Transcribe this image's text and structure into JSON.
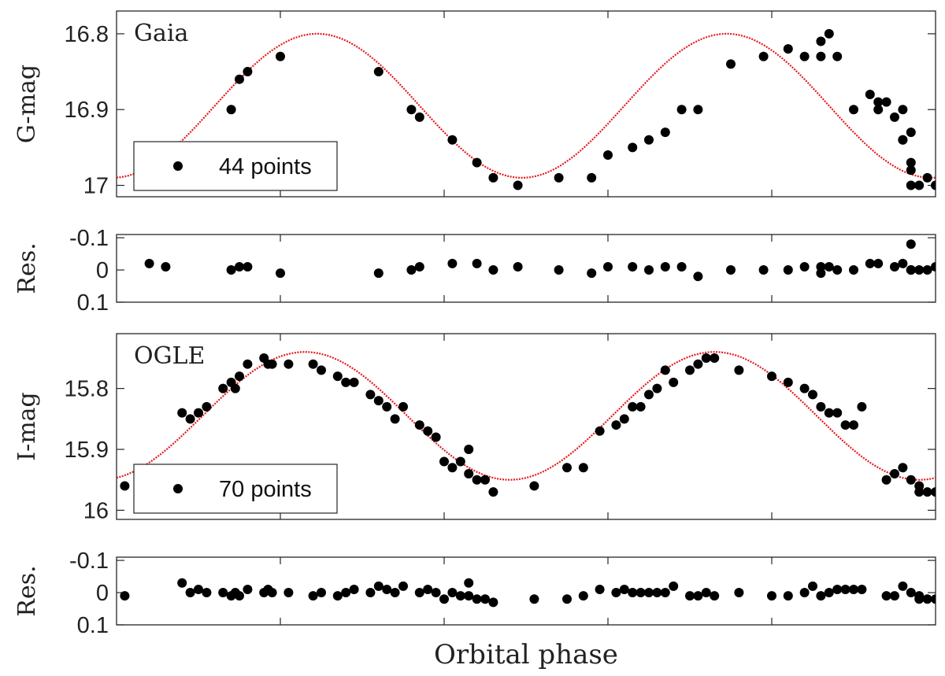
{
  "figure": {
    "xlabel": "Orbital phase",
    "point_color": "#000000",
    "model_color": "#e41a1c",
    "axes_color": "#262626"
  },
  "chart_data": [
    {
      "id": "gaia",
      "type": "scatter",
      "title": "Gaia",
      "ylabel": "G-mag",
      "xlim": [
        0,
        1
      ],
      "ylim": [
        16.77,
        17.015
      ],
      "y_inverted": true,
      "yticks": [
        16.8,
        16.9,
        17
      ],
      "ytick_labels": [
        "16.8",
        "16.9",
        "17"
      ],
      "xticks": [
        0.2,
        0.4,
        0.6,
        0.8
      ],
      "legend": {
        "label": "44 points",
        "location": "lower-left"
      },
      "model": {
        "type": "sinusoid",
        "mean": 16.895,
        "amplitude": 0.095,
        "minima_phase": [
          0.245,
          0.75
        ]
      },
      "series": [
        {
          "x": [
            0.06,
            0.14,
            0.15,
            0.16,
            0.2,
            0.32,
            0.36,
            0.37,
            0.41,
            0.44,
            0.46,
            0.49,
            0.54,
            0.58,
            0.6,
            0.63,
            0.65,
            0.67,
            0.69,
            0.71,
            0.75,
            0.79,
            0.82,
            0.84,
            0.86,
            0.86,
            0.87,
            0.88,
            0.9,
            0.92,
            0.93,
            0.95,
            0.97,
            0.96,
            0.96,
            0.97,
            0.97,
            0.97,
            0.93,
            0.94,
            0.96,
            0.98,
            0.99,
            1.0
          ],
          "y": [
            17.0,
            16.9,
            16.86,
            16.85,
            16.83,
            16.85,
            16.9,
            16.91,
            16.94,
            16.97,
            16.99,
            17.0,
            16.99,
            16.99,
            16.96,
            16.95,
            16.94,
            16.93,
            16.9,
            16.9,
            16.84,
            16.83,
            16.82,
            16.83,
            16.81,
            16.83,
            16.8,
            16.83,
            16.9,
            16.88,
            16.89,
            16.91,
            16.93,
            16.94,
            16.94,
            16.97,
            16.98,
            17.0,
            16.9,
            16.89,
            16.9,
            17.0,
            16.99,
            17.0
          ]
        }
      ]
    },
    {
      "id": "gaia-res",
      "type": "scatter",
      "ylabel": "Res.",
      "xlim": [
        0,
        1
      ],
      "ylim": [
        -0.11,
        0.1
      ],
      "y_inverted": true,
      "yticks": [
        -0.1,
        0,
        0.1
      ],
      "ytick_labels": [
        "-0.1",
        "0",
        "0.1"
      ],
      "xticks": [
        0.2,
        0.4,
        0.6,
        0.8
      ],
      "series": [
        {
          "x": [
            0.04,
            0.06,
            0.14,
            0.15,
            0.16,
            0.2,
            0.32,
            0.36,
            0.37,
            0.41,
            0.44,
            0.46,
            0.49,
            0.54,
            0.58,
            0.6,
            0.63,
            0.65,
            0.67,
            0.69,
            0.71,
            0.75,
            0.79,
            0.82,
            0.84,
            0.86,
            0.86,
            0.87,
            0.88,
            0.9,
            0.92,
            0.93,
            0.95,
            0.97,
            0.96,
            0.97,
            0.97,
            0.97,
            0.98,
            0.99,
            1.0
          ],
          "y": [
            -0.02,
            -0.01,
            0.0,
            -0.01,
            -0.01,
            0.01,
            0.01,
            0.0,
            -0.01,
            -0.02,
            -0.02,
            0.0,
            -0.01,
            0.0,
            0.01,
            -0.01,
            -0.01,
            0.0,
            -0.01,
            -0.01,
            0.02,
            0.0,
            0.0,
            0.0,
            -0.01,
            0.01,
            -0.01,
            -0.01,
            0.0,
            0.0,
            -0.02,
            -0.02,
            -0.01,
            -0.08,
            -0.02,
            0.0,
            0.0,
            0.0,
            0.0,
            0.0,
            -0.01
          ]
        }
      ]
    },
    {
      "id": "ogle",
      "type": "scatter",
      "title": "OGLE",
      "ylabel": "I-mag",
      "xlim": [
        0,
        1
      ],
      "ylim": [
        15.71,
        16.015
      ],
      "y_inverted": true,
      "yticks": [
        15.8,
        15.9,
        16
      ],
      "ytick_labels": [
        "15.8",
        "15.9",
        "16"
      ],
      "xticks": [
        0.2,
        0.4,
        0.6,
        0.8
      ],
      "legend": {
        "label": "70 points",
        "location": "lower-left"
      },
      "model": {
        "type": "sinusoid",
        "mean": 15.845,
        "amplitude": 0.105,
        "minima_phase": [
          0.23,
          0.735
        ]
      },
      "series": [
        {
          "x": [
            0.01,
            0.08,
            0.09,
            0.1,
            0.11,
            0.13,
            0.14,
            0.145,
            0.15,
            0.16,
            0.18,
            0.185,
            0.19,
            0.21,
            0.24,
            0.25,
            0.27,
            0.28,
            0.29,
            0.31,
            0.32,
            0.33,
            0.34,
            0.35,
            0.37,
            0.38,
            0.39,
            0.4,
            0.41,
            0.42,
            0.43,
            0.43,
            0.44,
            0.45,
            0.46,
            0.51,
            0.55,
            0.57,
            0.59,
            0.61,
            0.62,
            0.63,
            0.64,
            0.65,
            0.66,
            0.67,
            0.68,
            0.7,
            0.71,
            0.72,
            0.73,
            0.76,
            0.8,
            0.82,
            0.84,
            0.85,
            0.86,
            0.87,
            0.88,
            0.89,
            0.9,
            0.91,
            0.94,
            0.95,
            0.97,
            0.98,
            0.98,
            0.99,
            1.0,
            0.96
          ],
          "y": [
            15.96,
            15.84,
            15.85,
            15.84,
            15.83,
            15.8,
            15.79,
            15.8,
            15.78,
            15.76,
            15.75,
            15.76,
            15.76,
            15.76,
            15.76,
            15.77,
            15.78,
            15.79,
            15.79,
            15.81,
            15.82,
            15.83,
            15.85,
            15.83,
            15.86,
            15.87,
            15.88,
            15.92,
            15.93,
            15.92,
            15.9,
            15.94,
            15.95,
            15.95,
            15.97,
            15.96,
            15.93,
            15.93,
            15.87,
            15.86,
            15.85,
            15.83,
            15.83,
            15.81,
            15.8,
            15.77,
            15.79,
            15.77,
            15.76,
            15.75,
            15.75,
            15.77,
            15.78,
            15.79,
            15.8,
            15.81,
            15.83,
            15.84,
            15.84,
            15.86,
            15.86,
            15.83,
            15.95,
            15.94,
            15.95,
            15.97,
            15.96,
            15.97,
            15.97,
            15.93
          ]
        }
      ]
    },
    {
      "id": "ogle-res",
      "type": "scatter",
      "ylabel": "Res.",
      "xlim": [
        0,
        1
      ],
      "ylim": [
        -0.11,
        0.1
      ],
      "y_inverted": true,
      "yticks": [
        -0.1,
        0,
        0.1
      ],
      "ytick_labels": [
        "-0.1",
        "0",
        "0.1"
      ],
      "xticks": [
        0.2,
        0.4,
        0.6,
        0.8
      ],
      "series": [
        {
          "x": [
            0.01,
            0.08,
            0.09,
            0.1,
            0.11,
            0.13,
            0.14,
            0.145,
            0.15,
            0.16,
            0.18,
            0.185,
            0.19,
            0.21,
            0.24,
            0.25,
            0.27,
            0.28,
            0.29,
            0.31,
            0.32,
            0.33,
            0.34,
            0.35,
            0.37,
            0.38,
            0.39,
            0.4,
            0.41,
            0.42,
            0.43,
            0.43,
            0.44,
            0.45,
            0.46,
            0.51,
            0.55,
            0.57,
            0.59,
            0.61,
            0.62,
            0.63,
            0.64,
            0.65,
            0.66,
            0.67,
            0.68,
            0.7,
            0.71,
            0.72,
            0.73,
            0.76,
            0.8,
            0.82,
            0.84,
            0.85,
            0.86,
            0.87,
            0.88,
            0.89,
            0.9,
            0.91,
            0.94,
            0.95,
            0.97,
            0.98,
            0.98,
            0.99,
            1.0,
            0.96
          ],
          "y": [
            0.01,
            -0.03,
            0.0,
            -0.01,
            0.0,
            0.0,
            0.01,
            0.0,
            0.01,
            -0.01,
            0.0,
            -0.01,
            0.0,
            0.0,
            0.01,
            0.0,
            0.01,
            0.0,
            -0.01,
            0.0,
            -0.02,
            -0.01,
            0.0,
            -0.02,
            0.0,
            -0.01,
            0.0,
            0.02,
            0.0,
            0.01,
            0.01,
            -0.03,
            0.02,
            0.02,
            0.03,
            0.02,
            0.02,
            0.01,
            -0.01,
            0.0,
            -0.01,
            0.0,
            0.0,
            0.0,
            0.0,
            0.0,
            -0.02,
            0.01,
            0.01,
            0.0,
            0.01,
            0.0,
            0.01,
            0.01,
            0.0,
            -0.02,
            0.01,
            0.0,
            -0.01,
            -0.01,
            -0.01,
            -0.01,
            0.01,
            0.01,
            0.0,
            0.01,
            0.02,
            0.02,
            0.02,
            -0.02
          ]
        }
      ]
    }
  ]
}
